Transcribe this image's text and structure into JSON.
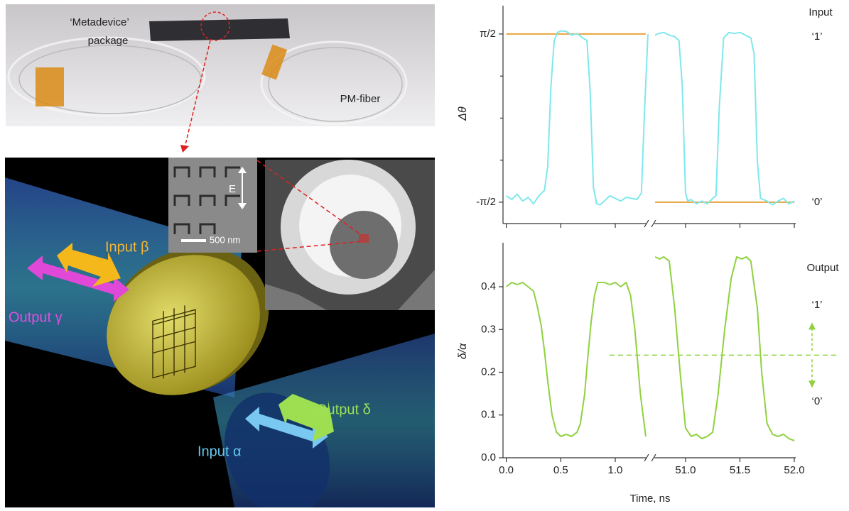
{
  "illustration": {
    "package_label": [
      "‘Metadevice’",
      "package"
    ],
    "fiber_label": "PM-fiber",
    "beams": [
      "Input β",
      "Output γ",
      "Output δ",
      "Input α"
    ],
    "field_label": "E",
    "scale_bar": "500 nm"
  },
  "chart_data": [
    {
      "type": "line",
      "ylabel": "Δθ",
      "xlim": [
        -0.03,
        52.0
      ],
      "xbreak": [
        1.3,
        50.7
      ],
      "xticks": [
        0,
        0.5,
        1,
        51,
        51.5,
        52
      ],
      "ylim": [
        -1.97,
        2.1
      ],
      "yticks": [
        {
          "value": 1.5708,
          "label": "π/2"
        },
        {
          "value": -1.5708,
          "label": "-π/2"
        }
      ],
      "yminorticks": [
        0.785,
        0,
        -0.785
      ],
      "annotations": [
        "Input",
        "‘1’",
        "‘0’"
      ],
      "series": [
        {
          "color": "#7fe8ec",
          "x": [
            0,
            0.05,
            0.1,
            0.15,
            0.2,
            0.25,
            0.3,
            0.35,
            0.38,
            0.41,
            0.44,
            0.47,
            0.5,
            0.55,
            0.6,
            0.65,
            0.7,
            0.74,
            0.77,
            0.8,
            0.83,
            0.86,
            0.9,
            0.95,
            1.0,
            1.05,
            1.1,
            1.15,
            1.2,
            1.24,
            1.27,
            1.3,
            null,
            50.72,
            50.75,
            50.8,
            50.85,
            50.9,
            50.94,
            50.97,
            51.0,
            51.02,
            51.05,
            51.1,
            51.15,
            51.2,
            51.25,
            51.28,
            51.31,
            51.35,
            51.4,
            51.45,
            51.5,
            51.55,
            51.6,
            51.63,
            51.66,
            51.69,
            51.75,
            51.8,
            51.85,
            51.9,
            51.95,
            52.0
          ],
          "values": [
            -1.45,
            -1.52,
            -1.42,
            -1.55,
            -1.48,
            -1.6,
            -1.45,
            -1.35,
            -0.9,
            0.6,
            1.45,
            1.6,
            1.63,
            1.62,
            1.55,
            1.58,
            1.5,
            1.45,
            0.5,
            -1.3,
            -1.6,
            -1.62,
            -1.55,
            -1.45,
            -1.5,
            -1.55,
            -1.48,
            -1.5,
            -1.52,
            -1.4,
            0.2,
            1.57,
            null,
            1.55,
            1.58,
            1.6,
            1.55,
            1.52,
            1.45,
            0.6,
            -1.4,
            -1.55,
            -1.52,
            -1.6,
            -1.55,
            -1.6,
            -1.5,
            -1.45,
            0.2,
            1.5,
            1.6,
            1.58,
            1.6,
            1.55,
            1.5,
            1.2,
            -0.8,
            -1.5,
            -1.55,
            -1.62,
            -1.55,
            -1.5,
            -1.6,
            -1.55
          ]
        },
        {
          "color": "#e8a33d",
          "x": [
            0,
            1.28,
            null,
            50.72,
            52.0
          ],
          "values": [
            1.5708,
            1.5708,
            null,
            -1.5708,
            -1.5708
          ]
        }
      ]
    },
    {
      "type": "line",
      "ylabel": "δ/α",
      "xlabel": "Time, ns",
      "xlim": [
        -0.03,
        52.0
      ],
      "xbreak": [
        1.3,
        50.7
      ],
      "xticks": [
        {
          "value": 0,
          "label": "0.0"
        },
        0.5,
        {
          "value": 1,
          "label": "1.0"
        },
        {
          "value": 51,
          "label": "51.0"
        },
        51.5,
        {
          "value": 52,
          "label": "52.0"
        }
      ],
      "ylim": [
        0,
        0.503
      ],
      "yticks": [
        {
          "value": 0,
          "label": "0.0"
        },
        0.1,
        0.2,
        0.3,
        0.4
      ],
      "threshold": 0.24,
      "annotations": [
        "Output",
        "‘1’",
        "‘0’"
      ],
      "series": [
        {
          "color": "#8fd13f",
          "x": [
            0,
            0.05,
            0.1,
            0.15,
            0.2,
            0.25,
            0.28,
            0.32,
            0.35,
            0.38,
            0.42,
            0.46,
            0.5,
            0.55,
            0.6,
            0.65,
            0.68,
            0.72,
            0.75,
            0.78,
            0.81,
            0.84,
            0.9,
            0.95,
            1.0,
            1.05,
            1.1,
            1.14,
            1.18,
            1.23,
            1.28,
            null,
            50.72,
            50.76,
            50.8,
            50.85,
            50.9,
            50.95,
            51.0,
            51.05,
            51.1,
            51.15,
            51.2,
            51.25,
            51.3,
            51.36,
            51.42,
            51.47,
            51.52,
            51.56,
            51.6,
            51.66,
            51.7,
            51.75,
            51.8,
            51.85,
            51.9,
            51.95,
            52.0
          ],
          "values": [
            0.4,
            0.41,
            0.405,
            0.41,
            0.4,
            0.39,
            0.36,
            0.31,
            0.25,
            0.18,
            0.1,
            0.06,
            0.05,
            0.055,
            0.05,
            0.06,
            0.08,
            0.15,
            0.24,
            0.32,
            0.38,
            0.41,
            0.41,
            0.405,
            0.41,
            0.4,
            0.41,
            0.38,
            0.3,
            0.15,
            0.05,
            null,
            0.47,
            0.465,
            0.47,
            0.46,
            0.35,
            0.2,
            0.07,
            0.05,
            0.055,
            0.045,
            0.05,
            0.06,
            0.15,
            0.3,
            0.42,
            0.47,
            0.465,
            0.47,
            0.46,
            0.35,
            0.2,
            0.08,
            0.055,
            0.05,
            0.055,
            0.045,
            0.04
          ]
        }
      ]
    }
  ]
}
